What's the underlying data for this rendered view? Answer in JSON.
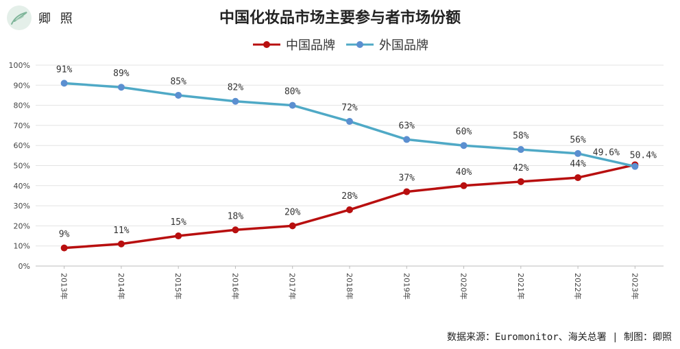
{
  "brand": {
    "name": "卿 照",
    "icon": "feather-icon"
  },
  "source_text": "数据来源：Euromonitor、海关总署 | 制图：卿照",
  "chart_data": {
    "type": "line",
    "title": "中国化妆品市场主要参与者市场份额",
    "xlabel": "",
    "ylabel": "",
    "ylim": [
      0,
      100
    ],
    "yticks": [
      "0%",
      "10%",
      "20%",
      "30%",
      "40%",
      "50%",
      "60%",
      "70%",
      "80%",
      "90%",
      "100%"
    ],
    "categories": [
      "2013年",
      "2014年",
      "2015年",
      "2016年",
      "2017年",
      "2018年",
      "2019年",
      "2020年",
      "2021年",
      "2022年",
      "2023年"
    ],
    "legend_position": "top-center",
    "grid": true,
    "series": [
      {
        "name": "中国品牌",
        "color": "#b80f0f",
        "values": [
          9,
          11,
          15,
          18,
          20,
          28,
          37,
          40,
          42,
          44,
          50.4
        ],
        "labels": [
          "9%",
          "11%",
          "15%",
          "18%",
          "20%",
          "28%",
          "37%",
          "40%",
          "42%",
          "44%",
          "50.4%"
        ]
      },
      {
        "name": "外国品牌",
        "color": "#4fa9c6",
        "marker_color": "#5b8fd0",
        "values": [
          91,
          89,
          85,
          82,
          80,
          72,
          63,
          60,
          58,
          56,
          49.6
        ],
        "labels": [
          "91%",
          "89%",
          "85%",
          "82%",
          "80%",
          "72%",
          "63%",
          "60%",
          "58%",
          "56%",
          "49.6%"
        ]
      }
    ]
  }
}
